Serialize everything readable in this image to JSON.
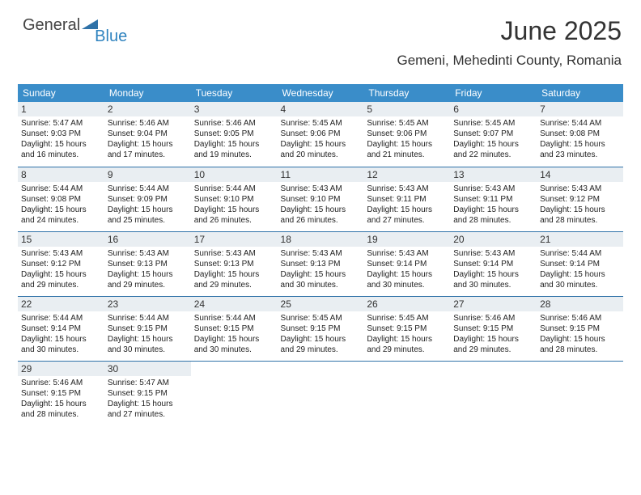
{
  "logo": {
    "brand1": "General",
    "brand2": "Blue",
    "brand1_color": "#444444",
    "brand2_color": "#2f83bf",
    "icon_fill": "#2f72a8"
  },
  "header": {
    "title": "June 2025",
    "subtitle": "Gemeni, Mehedinti County, Romania"
  },
  "style": {
    "header_bg": "#3a8dc9",
    "header_fg": "#ffffff",
    "daynum_bg": "#e9eef2",
    "border_color": "#2f72a8",
    "text_color": "#222222",
    "font_size_header": 12,
    "font_size_daynum": 12,
    "font_size_info": 10
  },
  "days_of_week": [
    "Sunday",
    "Monday",
    "Tuesday",
    "Wednesday",
    "Thursday",
    "Friday",
    "Saturday"
  ],
  "cells": [
    {
      "n": "1",
      "sr": "5:47 AM",
      "ss": "9:03 PM",
      "dl": "15 hours and 16 minutes."
    },
    {
      "n": "2",
      "sr": "5:46 AM",
      "ss": "9:04 PM",
      "dl": "15 hours and 17 minutes."
    },
    {
      "n": "3",
      "sr": "5:46 AM",
      "ss": "9:05 PM",
      "dl": "15 hours and 19 minutes."
    },
    {
      "n": "4",
      "sr": "5:45 AM",
      "ss": "9:06 PM",
      "dl": "15 hours and 20 minutes."
    },
    {
      "n": "5",
      "sr": "5:45 AM",
      "ss": "9:06 PM",
      "dl": "15 hours and 21 minutes."
    },
    {
      "n": "6",
      "sr": "5:45 AM",
      "ss": "9:07 PM",
      "dl": "15 hours and 22 minutes."
    },
    {
      "n": "7",
      "sr": "5:44 AM",
      "ss": "9:08 PM",
      "dl": "15 hours and 23 minutes."
    },
    {
      "n": "8",
      "sr": "5:44 AM",
      "ss": "9:08 PM",
      "dl": "15 hours and 24 minutes."
    },
    {
      "n": "9",
      "sr": "5:44 AM",
      "ss": "9:09 PM",
      "dl": "15 hours and 25 minutes."
    },
    {
      "n": "10",
      "sr": "5:44 AM",
      "ss": "9:10 PM",
      "dl": "15 hours and 26 minutes."
    },
    {
      "n": "11",
      "sr": "5:43 AM",
      "ss": "9:10 PM",
      "dl": "15 hours and 26 minutes."
    },
    {
      "n": "12",
      "sr": "5:43 AM",
      "ss": "9:11 PM",
      "dl": "15 hours and 27 minutes."
    },
    {
      "n": "13",
      "sr": "5:43 AM",
      "ss": "9:11 PM",
      "dl": "15 hours and 28 minutes."
    },
    {
      "n": "14",
      "sr": "5:43 AM",
      "ss": "9:12 PM",
      "dl": "15 hours and 28 minutes."
    },
    {
      "n": "15",
      "sr": "5:43 AM",
      "ss": "9:12 PM",
      "dl": "15 hours and 29 minutes."
    },
    {
      "n": "16",
      "sr": "5:43 AM",
      "ss": "9:13 PM",
      "dl": "15 hours and 29 minutes."
    },
    {
      "n": "17",
      "sr": "5:43 AM",
      "ss": "9:13 PM",
      "dl": "15 hours and 29 minutes."
    },
    {
      "n": "18",
      "sr": "5:43 AM",
      "ss": "9:13 PM",
      "dl": "15 hours and 30 minutes."
    },
    {
      "n": "19",
      "sr": "5:43 AM",
      "ss": "9:14 PM",
      "dl": "15 hours and 30 minutes."
    },
    {
      "n": "20",
      "sr": "5:43 AM",
      "ss": "9:14 PM",
      "dl": "15 hours and 30 minutes."
    },
    {
      "n": "21",
      "sr": "5:44 AM",
      "ss": "9:14 PM",
      "dl": "15 hours and 30 minutes."
    },
    {
      "n": "22",
      "sr": "5:44 AM",
      "ss": "9:14 PM",
      "dl": "15 hours and 30 minutes."
    },
    {
      "n": "23",
      "sr": "5:44 AM",
      "ss": "9:15 PM",
      "dl": "15 hours and 30 minutes."
    },
    {
      "n": "24",
      "sr": "5:44 AM",
      "ss": "9:15 PM",
      "dl": "15 hours and 30 minutes."
    },
    {
      "n": "25",
      "sr": "5:45 AM",
      "ss": "9:15 PM",
      "dl": "15 hours and 29 minutes."
    },
    {
      "n": "26",
      "sr": "5:45 AM",
      "ss": "9:15 PM",
      "dl": "15 hours and 29 minutes."
    },
    {
      "n": "27",
      "sr": "5:46 AM",
      "ss": "9:15 PM",
      "dl": "15 hours and 29 minutes."
    },
    {
      "n": "28",
      "sr": "5:46 AM",
      "ss": "9:15 PM",
      "dl": "15 hours and 28 minutes."
    },
    {
      "n": "29",
      "sr": "5:46 AM",
      "ss": "9:15 PM",
      "dl": "15 hours and 28 minutes."
    },
    {
      "n": "30",
      "sr": "5:47 AM",
      "ss": "9:15 PM",
      "dl": "15 hours and 27 minutes."
    }
  ],
  "labels": {
    "sunrise": "Sunrise:",
    "sunset": "Sunset:",
    "daylight": "Daylight:"
  },
  "grid": {
    "start_offset": 0,
    "rows": 5,
    "cols": 7
  }
}
